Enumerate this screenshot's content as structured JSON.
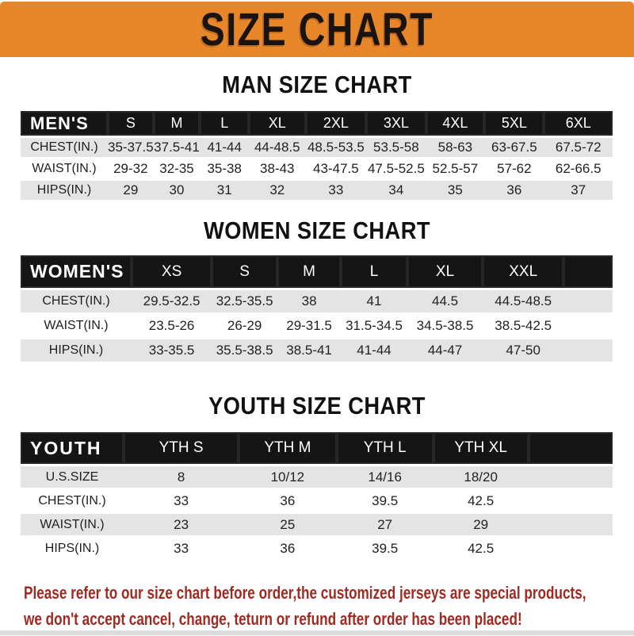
{
  "banner": {
    "title": "SIZE CHART"
  },
  "colors": {
    "banner_bg": "#E8862A",
    "header_bar": "#151515",
    "row_gray": "#E4E4E4",
    "note_red": "#9E2B23"
  },
  "tables": [
    {
      "id": "men",
      "heading": "MAN SIZE CHART",
      "header_label": "MEN'S",
      "columns": [
        "S",
        "M",
        "L",
        "XL",
        "2XL",
        "3XL",
        "4XL",
        "5XL",
        "6XL"
      ],
      "rows": [
        {
          "label": "CHEST(IN.)",
          "values": [
            "35-37.5",
            "37.5-41",
            "41-44",
            "44-48.5",
            "48.5-53.5",
            "53.5-58",
            "58-63",
            "63-67.5",
            "67.5-72"
          ]
        },
        {
          "label": "WAIST(IN.)",
          "values": [
            "29-32",
            "32-35",
            "35-38",
            "38-43",
            "43-47.5",
            "47.5-52.5",
            "52.5-57",
            "57-62",
            "62-66.5"
          ]
        },
        {
          "label": "HIPS(IN.)",
          "values": [
            "29",
            "30",
            "31",
            "32",
            "33",
            "34",
            "35",
            "36",
            "37"
          ]
        }
      ],
      "trailing_blank": false
    },
    {
      "id": "women",
      "heading": "WOMEN SIZE CHART",
      "header_label": "WOMEN'S",
      "columns": [
        "XS",
        "S",
        "M",
        "L",
        "XL",
        "XXL"
      ],
      "rows": [
        {
          "label": "CHEST(IN.)",
          "values": [
            "29.5-32.5",
            "32.5-35.5",
            "38",
            "41",
            "44.5",
            "44.5-48.5"
          ]
        },
        {
          "label": "WAIST(IN.)",
          "values": [
            "23.5-26",
            "26-29",
            "29-31.5",
            "31.5-34.5",
            "34.5-38.5",
            "38.5-42.5"
          ]
        },
        {
          "label": "HIPS(IN.)",
          "values": [
            "33-35.5",
            "35.5-38.5",
            "38.5-41",
            "41-44",
            "44-47",
            "47-50"
          ]
        }
      ],
      "trailing_blank": true
    },
    {
      "id": "youth",
      "heading": "YOUTH SIZE CHART",
      "header_label": "YOUTH",
      "columns": [
        "YTH S",
        "YTH M",
        "YTH L",
        "YTH XL"
      ],
      "rows": [
        {
          "label": "U.S.SIZE",
          "values": [
            "8",
            "10/12",
            "14/16",
            "18/20"
          ]
        },
        {
          "label": "CHEST(IN.)",
          "values": [
            "33",
            "36",
            "39.5",
            "42.5"
          ]
        },
        {
          "label": "WAIST(IN.)",
          "values": [
            "23",
            "25",
            "27",
            "29"
          ]
        },
        {
          "label": "HIPS(IN.)",
          "values": [
            "33",
            "36",
            "39.5",
            "42.5"
          ]
        }
      ],
      "trailing_blank": true
    }
  ],
  "note": {
    "lines": [
      "Please refer to our size chart before order,the customized jerseys are special products,",
      "we don't accept cancel, change, teturn or refund after order has been placed!"
    ]
  }
}
